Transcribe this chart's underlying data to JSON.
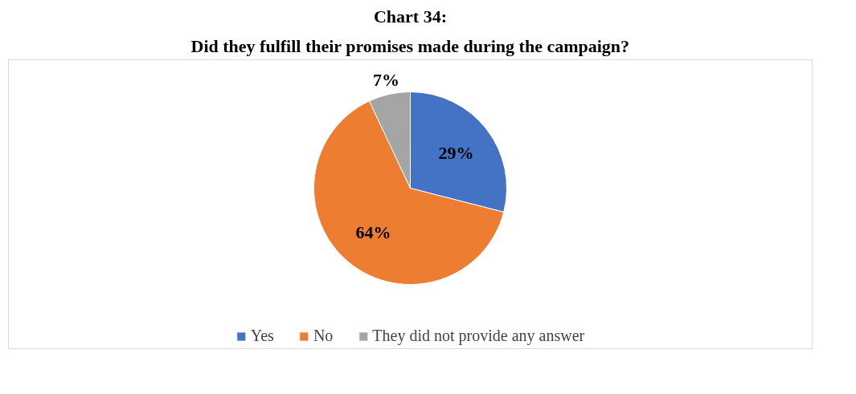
{
  "chart_data": {
    "type": "pie",
    "title": "Chart 34:",
    "subtitle": "Did they fulfill their promises made during the campaign?",
    "categories": [
      "Yes",
      "No",
      "They did not provide any answer"
    ],
    "values": [
      29,
      64,
      7
    ],
    "colors": [
      "#4472c4",
      "#ed7d31",
      "#a5a5a5"
    ],
    "value_labels": [
      "29%",
      "64%",
      "7%"
    ],
    "legend": "bottom"
  }
}
